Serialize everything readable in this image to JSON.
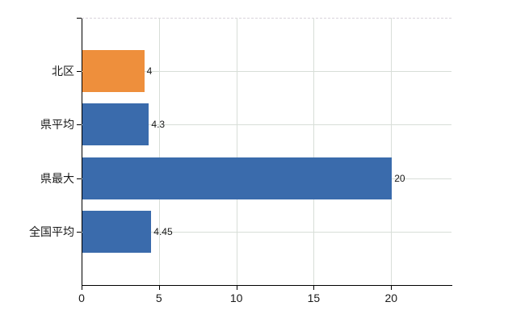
{
  "chart_data": {
    "type": "bar",
    "orientation": "horizontal",
    "title": "",
    "xlabel": "",
    "ylabel": "",
    "legend": false,
    "grid": true,
    "categories": [
      "北区",
      "県平均",
      "県最大",
      "全国平均"
    ],
    "values": [
      4,
      4.3,
      20,
      4.45
    ],
    "value_labels": [
      "4",
      "4.3",
      "20",
      "4.45"
    ],
    "bar_colors": [
      "#ee8f3c",
      "#3a6bac",
      "#3a6bac",
      "#3a6bac"
    ],
    "highlight_color": "#ee8f3c",
    "series_color": "#3a6bac",
    "x_ticks": [
      0,
      5,
      10,
      15,
      20
    ],
    "x_tick_labels": [
      "0",
      "5",
      "10",
      "15",
      "20"
    ],
    "xlim": [
      0,
      23.9
    ],
    "axis_color": "#000000",
    "gridline_color": "#d8ded8",
    "top_border_color": "#d9d3db"
  }
}
